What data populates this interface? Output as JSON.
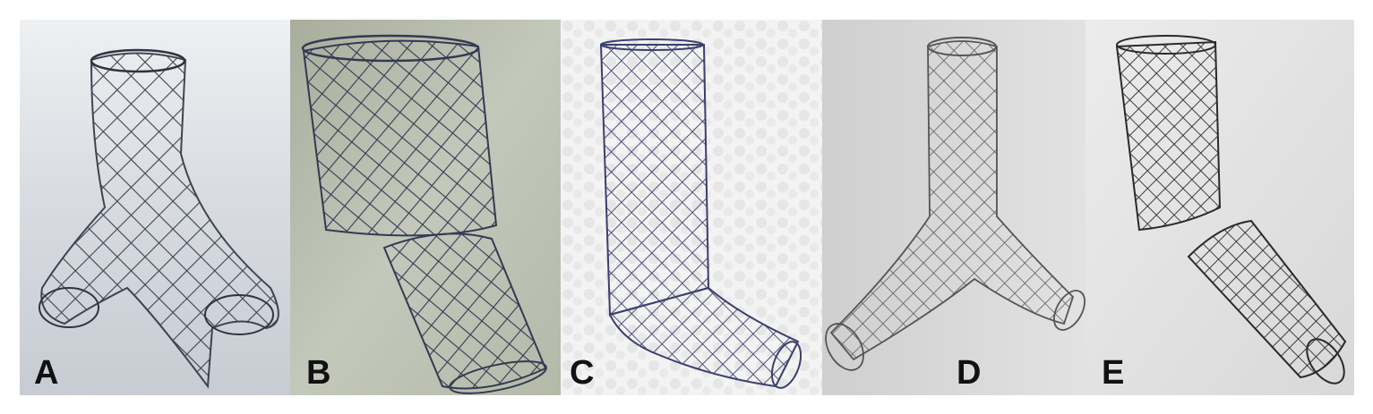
{
  "figure": {
    "panels": [
      {
        "label": "A",
        "subject": "stent-trifurcated-y",
        "background": "#d8dde3"
      },
      {
        "label": "B",
        "subject": "stent-angled-tube",
        "background": "#bfc4b8"
      },
      {
        "label": "C",
        "subject": "stent-l-shaped",
        "background": "#eeeeee"
      },
      {
        "label": "D",
        "subject": "stent-y-shaped",
        "background": "#d6d6d6"
      },
      {
        "label": "E",
        "subject": "stent-angled-segmented",
        "background": "#e4e4e4"
      }
    ],
    "colors": {
      "mesh_dark": "#2f3442",
      "mesh_blue": "#3c3f6e",
      "mesh_gray": "#555555"
    }
  }
}
